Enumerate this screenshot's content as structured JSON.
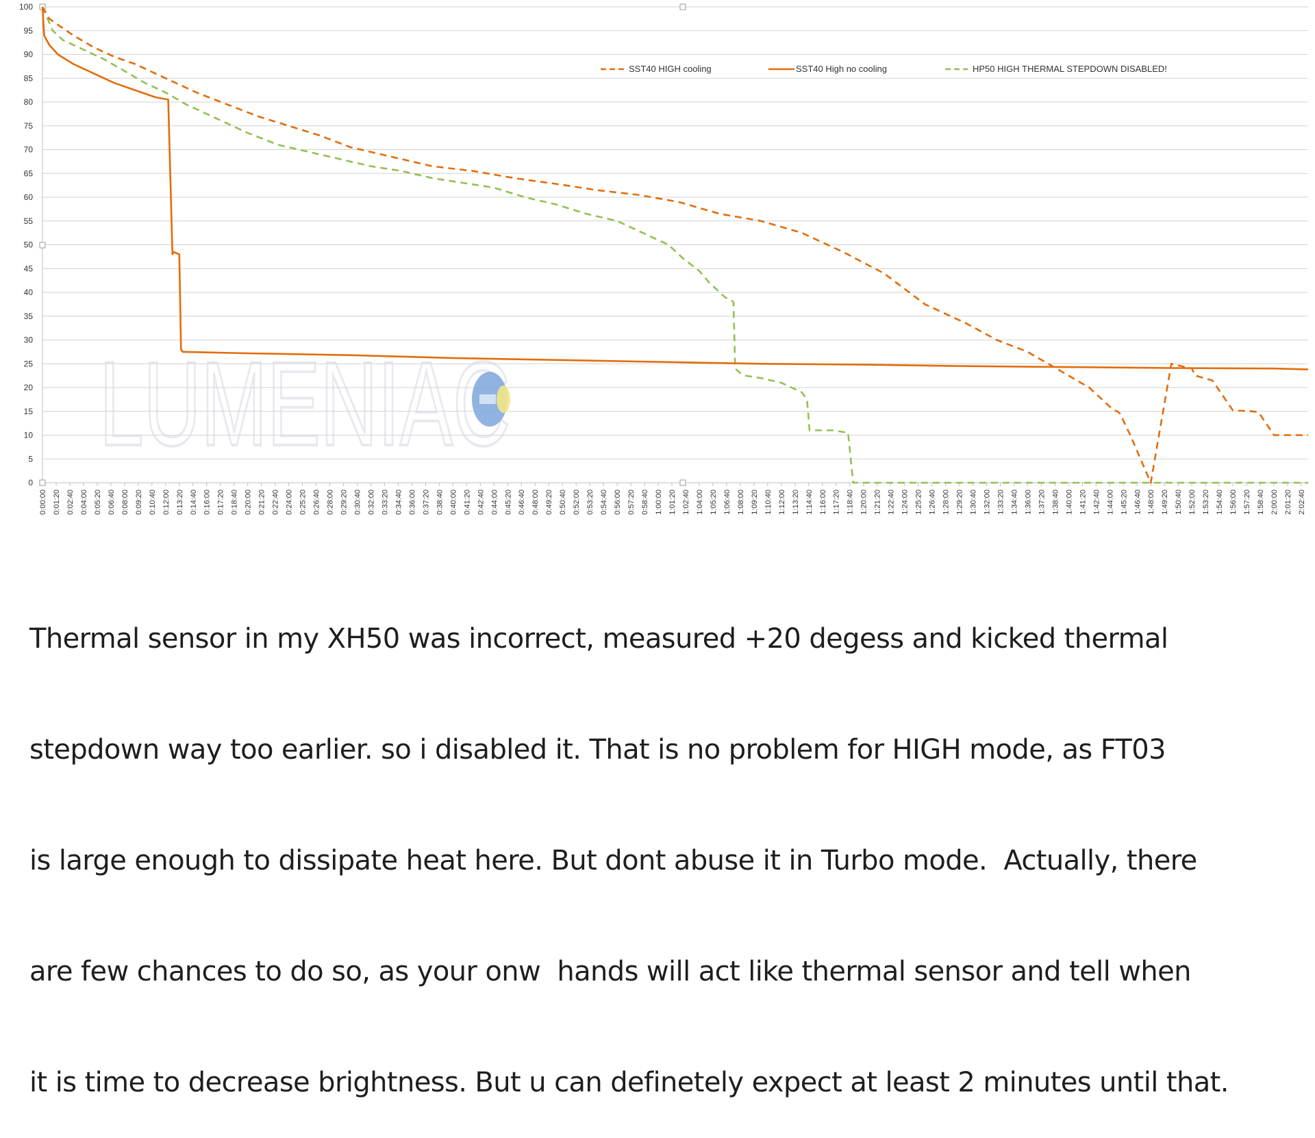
{
  "colors": {
    "series1": "#e36c0a",
    "series2": "#e36c0a",
    "series3": "#92c050",
    "grid": "#d2d2d2",
    "text": "#333333"
  },
  "watermark": "LUMENIAC",
  "chart_data": {
    "type": "line",
    "xlabel": "",
    "ylabel": "",
    "ylim": [
      0,
      100
    ],
    "xlim_seconds": [
      0,
      7400
    ],
    "x_ticks_every_seconds": 80,
    "y_ticks": [
      0,
      5,
      10,
      15,
      20,
      25,
      30,
      35,
      40,
      45,
      50,
      55,
      60,
      65,
      70,
      75,
      80,
      85,
      90,
      95,
      100
    ],
    "x_tick_labels": [
      "0:00:00",
      "0:01:20",
      "0:02:40",
      "0:04:00",
      "0:05:20",
      "0:06:40",
      "0:08:00",
      "0:09:20",
      "0:10:40",
      "0:12:00",
      "0:13:20",
      "0:14:40",
      "0:16:00",
      "0:17:20",
      "0:18:40",
      "0:20:00",
      "0:21:20",
      "0:22:40",
      "0:24:00",
      "0:25:20",
      "0:26:40",
      "0:28:00",
      "0:29:20",
      "0:30:40",
      "0:32:00",
      "0:33:20",
      "0:34:40",
      "0:36:00",
      "0:37:20",
      "0:38:40",
      "0:40:00",
      "0:41:20",
      "0:42:40",
      "0:44:00",
      "0:45:20",
      "0:46:40",
      "0:48:00",
      "0:49:20",
      "0:50:40",
      "0:52:00",
      "0:53:20",
      "0:54:40",
      "0:56:00",
      "0:57:20",
      "0:58:40",
      "1:00:00",
      "1:01:20",
      "1:02:40",
      "1:04:00",
      "1:05:20",
      "1:06:40",
      "1:08:00",
      "1:09:20",
      "1:10:40",
      "1:12:00",
      "1:13:20",
      "1:14:40",
      "1:16:00",
      "1:17:20",
      "1:18:40",
      "1:20:00",
      "1:21:20",
      "1:22:40",
      "1:24:00",
      "1:25:20",
      "1:26:40",
      "1:28:00",
      "1:29:20",
      "1:30:40",
      "1:32:00",
      "1:33:20",
      "1:34:40",
      "1:36:00",
      "1:37:20",
      "1:38:40",
      "1:40:00",
      "1:41:20",
      "1:42:40",
      "1:44:00",
      "1:45:20",
      "1:46:40",
      "1:48:00",
      "1:49:20",
      "1:50:40",
      "1:52:00",
      "1:53:20",
      "1:54:40",
      "1:56:00",
      "1:57:20",
      "1:58:40",
      "2:00:00",
      "2:01:20",
      "2:02:40"
    ],
    "legend_position": "top-right",
    "series": [
      {
        "name": "SST40 HIGH cooling",
        "style": "dashed",
        "color": "#e36c0a",
        "x": [
          "0:00:00",
          "0:00:40",
          "0:01:40",
          "0:03:00",
          "0:05:00",
          "0:07:00",
          "0:09:00",
          "0:11:00",
          "0:13:00",
          "0:15:00",
          "0:18:00",
          "0:21:00",
          "0:24:00",
          "0:27:00",
          "0:30:00",
          "0:34:00",
          "0:38:00",
          "0:42:00",
          "0:46:00",
          "0:50:00",
          "0:54:00",
          "0:58:00",
          "1:02:00",
          "1:06:00",
          "1:10:00",
          "1:14:00",
          "1:18:00",
          "1:22:00",
          "1:26:00",
          "1:30:00",
          "1:33:00",
          "1:36:00",
          "1:38:00",
          "1:40:00",
          "1:42:00",
          "1:44:00",
          "1:44:40",
          "1:44:45",
          "1:45:00",
          "1:46:00",
          "1:48:00",
          "1:50:00",
          "1:52:00",
          "1:52:20",
          "1:54:00",
          "1:56:00",
          "1:58:00",
          "1:58:30",
          "2:00:00",
          "2:02:00",
          "2:03:20"
        ],
        "y": [
          100,
          97.5,
          96,
          94,
          91.5,
          89.5,
          88,
          86,
          84,
          82,
          79.5,
          77,
          75,
          73,
          70.5,
          68.5,
          66.5,
          65.5,
          64,
          62.8,
          61.5,
          60.5,
          59,
          56.5,
          55,
          52.5,
          48.5,
          44,
          37.5,
          33.5,
          30,
          27.5,
          25,
          22.5,
          20,
          16,
          15,
          15,
          14.5,
          10,
          0,
          25,
          24,
          22.5,
          21.5,
          15.2,
          15,
          14.8,
          10,
          10,
          10
        ]
      },
      {
        "name": "SST40 High no cooling",
        "style": "solid",
        "color": "#e36c0a",
        "x": [
          "0:00:00",
          "0:00:10",
          "0:00:40",
          "0:01:30",
          "0:03:00",
          "0:05:00",
          "0:07:00",
          "0:09:00",
          "0:11:00",
          "0:12:15",
          "0:12:40",
          "0:12:45",
          "0:13:20",
          "0:13:30",
          "0:13:40",
          "0:14:00",
          "0:20:00",
          "0:30:00",
          "0:40:00",
          "0:50:00",
          "1:00:00",
          "1:10:00",
          "1:20:00",
          "1:30:00",
          "1:40:00",
          "1:50:00",
          "2:00:00",
          "2:03:20"
        ],
        "y": [
          100,
          94,
          92,
          90,
          88,
          86,
          84,
          82.5,
          81,
          80.5,
          48,
          48.5,
          48,
          28,
          27.5,
          27.5,
          27.2,
          26.8,
          26.2,
          25.8,
          25.4,
          25,
          24.8,
          24.5,
          24.3,
          24.1,
          24,
          23.8
        ]
      },
      {
        "name": "HP50 HIGH THERMAL STEPDOWN DISABLED!",
        "style": "dashed",
        "color": "#92c050",
        "x": [
          "0:00:00",
          "0:01:00",
          "0:02:00",
          "0:04:00",
          "0:06:00",
          "0:08:00",
          "0:10:00",
          "0:12:00",
          "0:14:00",
          "0:17:00",
          "0:20:00",
          "0:23:00",
          "0:26:00",
          "0:29:00",
          "0:32:00",
          "0:35:00",
          "0:38:00",
          "0:41:00",
          "0:44:00",
          "0:47:00",
          "0:50:00",
          "0:53:00",
          "0:56:00",
          "0:59:00",
          "1:01:00",
          "1:02:30",
          "1:04:00",
          "1:05:00",
          "1:06:30",
          "1:07:20",
          "1:07:30",
          "1:08:00",
          "1:08:30",
          "1:10:00",
          "1:12:00",
          "1:14:00",
          "1:14:30",
          "1:14:45",
          "1:17:00",
          "1:18:30",
          "1:19:00",
          "1:19:10",
          "1:25:00",
          "1:35:00",
          "1:45:00",
          "1:55:00",
          "2:03:20"
        ],
        "y": [
          100,
          95,
          93,
          91,
          89,
          86.5,
          84,
          82,
          79.5,
          76.5,
          73.5,
          71,
          69.5,
          68,
          66.5,
          65.5,
          64,
          63,
          62,
          60,
          58.5,
          56.5,
          55,
          52,
          50,
          47,
          44.5,
          42,
          39,
          38,
          24,
          23,
          22.5,
          22,
          21,
          19,
          17.5,
          11,
          11,
          10.5,
          0,
          0,
          0,
          0,
          0,
          0,
          0
        ]
      }
    ]
  },
  "caption": {
    "lines": [
      "Thermal sensor in my XH50 was incorrect, measured +20 degess and kicked thermal",
      "stepdown way too earlier. so i disabled it. That is no problem for HIGH mode, as FT03",
      "is large enough to dissipate heat here. But dont abuse it in Turbo mode.  Actually, there",
      "are few chances to do so, as your onw  hands will act like thermal sensor and tell when",
      "it is time to decrease brightness. But u can definetely expect at least 2 minutes until that."
    ]
  }
}
